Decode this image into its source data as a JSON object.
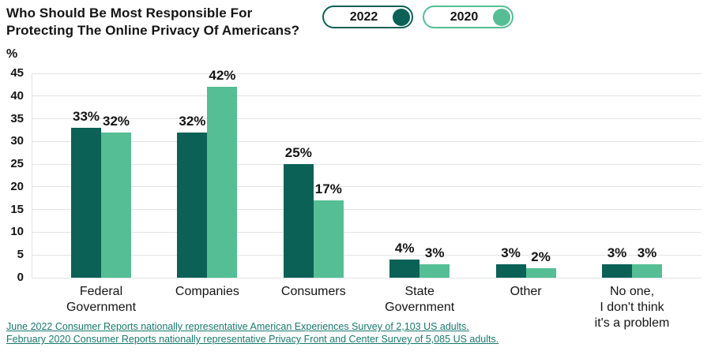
{
  "header": {
    "title": "Who Should Be Most Responsible For Protecting The Online Privacy Of Americans?"
  },
  "legend": [
    {
      "label": "2022",
      "color": "#0B6156"
    },
    {
      "label": "2020",
      "color": "#55BE95"
    }
  ],
  "chart_data": {
    "type": "bar",
    "categories": [
      "Federal Government",
      "Companies",
      "Consumers",
      "State Government",
      "Other",
      "No one, I don't think it's a problem"
    ],
    "category_lines": [
      [
        "Federal",
        "Government"
      ],
      [
        "Companies"
      ],
      [
        "Consumers"
      ],
      [
        "State",
        "Government"
      ],
      [
        "Other"
      ],
      [
        "No one,",
        "I don't think",
        "it's a problem"
      ]
    ],
    "series": [
      {
        "name": "2022",
        "color": "#0B6156",
        "values": [
          33,
          32,
          25,
          4,
          3,
          3
        ]
      },
      {
        "name": "2020",
        "color": "#55BE95",
        "values": [
          32,
          42,
          17,
          3,
          2,
          3
        ]
      }
    ],
    "title": "Who Should Be Most Responsible For Protecting The Online Privacy Of Americans?",
    "xlabel": "",
    "ylabel": "%",
    "ylim": [
      0,
      45
    ],
    "ytick_step": 5,
    "grid": true,
    "legend_position": "top-right",
    "value_suffix": "%"
  },
  "footnotes": [
    "June 2022 Consumer Reports nationally representative American Experiences Survey of 2,103 US adults.",
    "February 2020 Consumer Reports nationally representative Privacy Front and Center Survey of 5,085 US adults."
  ],
  "colors": {
    "link": "#17796D",
    "gridline": "#e3e3e3",
    "text": "#141414"
  }
}
